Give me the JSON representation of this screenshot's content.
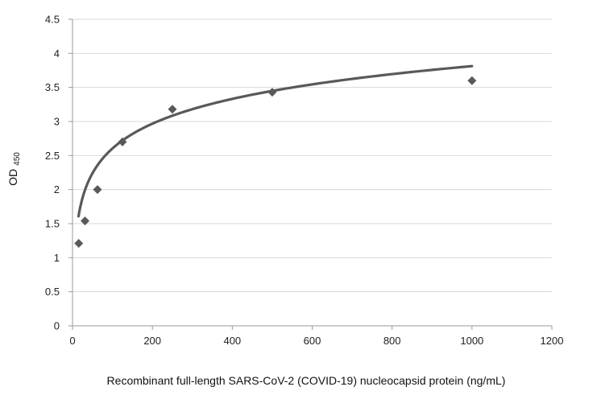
{
  "chart_data": {
    "type": "scatter",
    "title": "",
    "xlabel": "Recombinant full-length SARS-CoV-2 (COVID-19) nucleocapsid protein (ng/mL)",
    "ylabel": "OD",
    "ylabel_subscript": "450",
    "xlim": [
      0,
      1200
    ],
    "ylim": [
      0,
      4.5
    ],
    "x_ticks": [
      "0",
      "200",
      "400",
      "600",
      "800",
      "1000",
      "1200"
    ],
    "y_ticks": [
      "0",
      "0.5",
      "1",
      "1.5",
      "2",
      "2.5",
      "3",
      "3.5",
      "4",
      "4.5"
    ],
    "grid": "horizontal",
    "series": [
      {
        "marker": "diamond",
        "x": [
          15.6,
          31.25,
          62.5,
          125,
          250,
          500,
          1000
        ],
        "y": [
          1.21,
          1.54,
          2.0,
          2.7,
          3.18,
          3.43,
          3.6
        ]
      }
    ],
    "trendline": {
      "type": "logarithmic",
      "x_range": [
        15,
        1000
      ],
      "intercept": 0.186,
      "slope": 0.525
    },
    "colors": {
      "marker": "#595959",
      "trendline": "#595959"
    }
  }
}
